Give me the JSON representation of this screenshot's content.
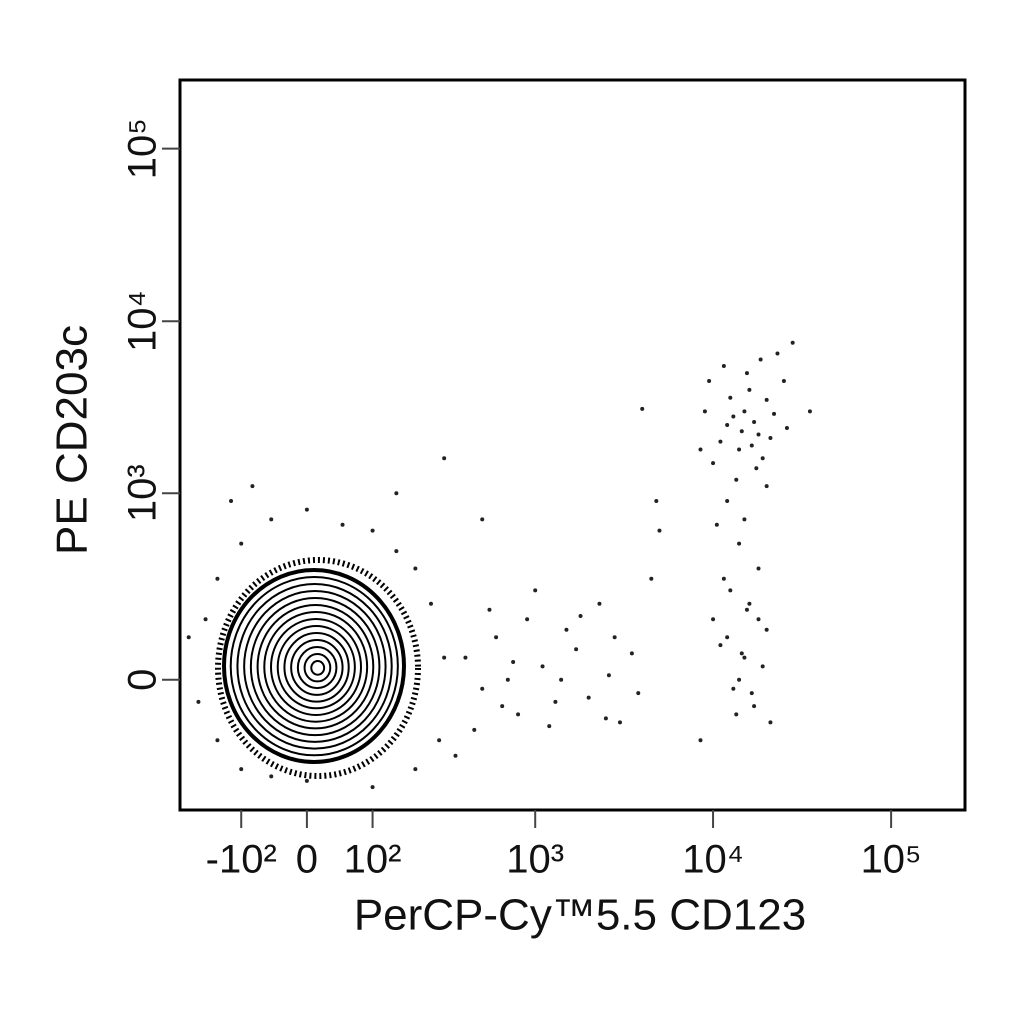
{
  "chart_data": {
    "type": "scatter",
    "x_label": "PerCP-Cy™5.5  CD123",
    "y_label": "PE  CD203c",
    "color": "#222222",
    "xlim": [
      -260,
      260000
    ],
    "ylim": [
      -460,
      250000
    ],
    "xticks": [
      {
        "value": -100,
        "label": "-10²"
      },
      0,
      {
        "value": 100,
        "label": "10²"
      },
      {
        "value": 1000,
        "label": "10³"
      },
      {
        "value": 10000,
        "label": "10⁴"
      },
      {
        "value": 100000,
        "label": "10⁵"
      }
    ],
    "yticks": [
      0,
      {
        "value": 1000,
        "label": "10³"
      },
      {
        "value": 10000,
        "label": "10⁴"
      },
      {
        "value": 100000,
        "label": "10⁵"
      }
    ],
    "x": [
      12000,
      15000,
      18000,
      14000,
      20000,
      16000,
      13000,
      17000,
      11000,
      22000,
      19000,
      15500,
      12500,
      25000,
      10000,
      14500,
      16500,
      21000,
      13500,
      9000,
      18500,
      23000,
      11500,
      17500,
      26000,
      8500,
      12000,
      15000,
      20000,
      10500,
      14000,
      9500,
      28000,
      35000,
      4000,
      12000,
      15000,
      18000,
      13000,
      16000,
      11000,
      20000,
      14000,
      17000,
      12500,
      19000,
      13500,
      15500,
      11500,
      21000,
      14500,
      10000,
      16500,
      8500,
      18000,
      400,
      500,
      600,
      700,
      800,
      900,
      1100,
      1300,
      1500,
      1700,
      2000,
      2300,
      2600,
      3000,
      3500,
      450,
      550,
      650,
      750,
      1000,
      1200,
      1400,
      1800,
      2500,
      2800,
      3800,
      4500,
      5000,
      4800,
      350,
      -150,
      -100,
      -200,
      -180,
      -50,
      0,
      50,
      100,
      150,
      200,
      250,
      300,
      280,
      200,
      100,
      0,
      -100,
      -150,
      -230,
      -120,
      -80,
      150,
      300,
      500,
      -50
    ],
    "values": [
      2500,
      3000,
      2200,
      1800,
      3500,
      4000,
      2800,
      2600,
      2000,
      2900,
      1600,
      5000,
      3600,
      4500,
      1500,
      2300,
      1900,
      2100,
      1200,
      3000,
      6000,
      6500,
      5500,
      1400,
      2400,
      1800,
      900,
      700,
      1100,
      650,
      500,
      4500,
      7500,
      3000,
      3100,
      100,
      50,
      150,
      -20,
      200,
      80,
      120,
      0,
      -60,
      250,
      30,
      -80,
      180,
      300,
      -100,
      60,
      150,
      -30,
      -150,
      350,
      50,
      -20,
      100,
      0,
      -80,
      150,
      30,
      -50,
      120,
      70,
      -40,
      200,
      10,
      -100,
      60,
      -120,
      180,
      -60,
      40,
      250,
      -110,
      0,
      160,
      -90,
      100,
      -30,
      300,
      600,
      900,
      -200,
      300,
      500,
      -50,
      150,
      700,
      800,
      650,
      600,
      450,
      350,
      200,
      50,
      -150,
      -250,
      -330,
      -300,
      -250,
      -150,
      100,
      900,
      1100,
      1000,
      1600,
      700,
      -280
    ]
  }
}
